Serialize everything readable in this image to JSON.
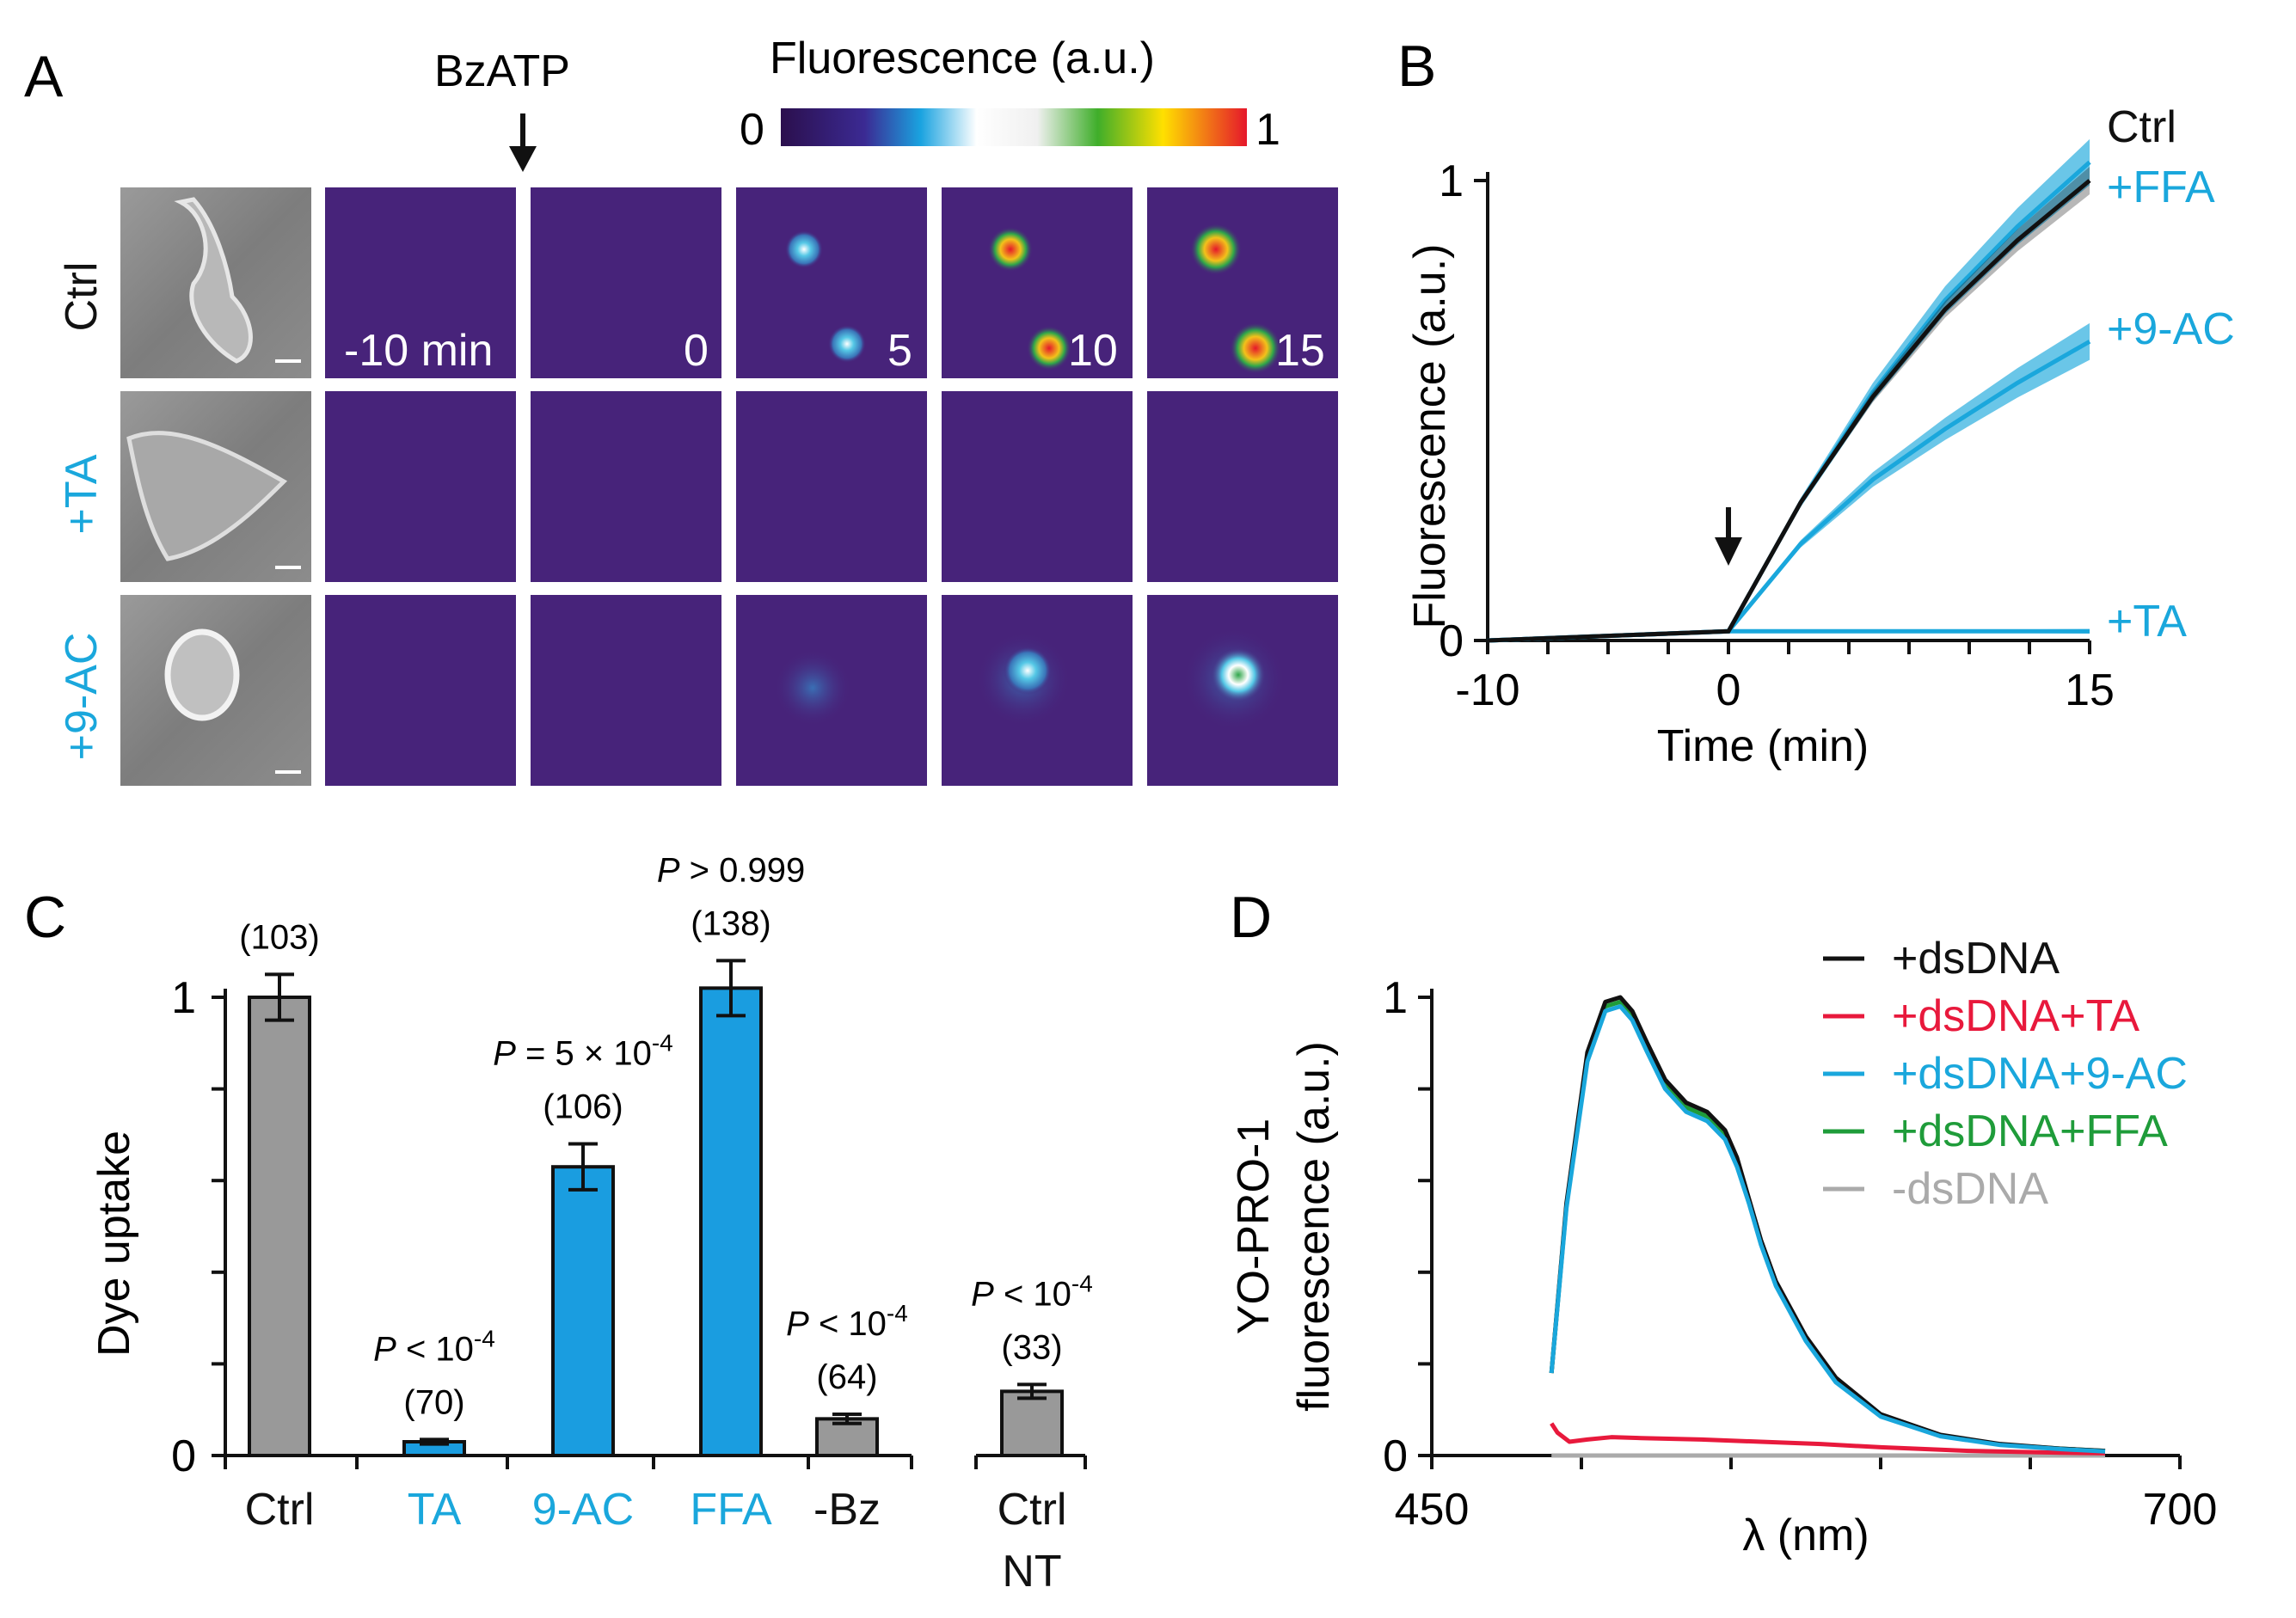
{
  "colors": {
    "black": "#111111",
    "cyan": "#1aa7dc",
    "cyan_bar": "#1a9de0",
    "gray_bar": "#999999",
    "red": "#e8193c",
    "green": "#1f9c3a",
    "lightgray": "#aaaaaa",
    "purple_bg": "#47237a"
  },
  "panelA": {
    "label": "A",
    "stimulus": "BzATP",
    "colorbar_title": "Fluorescence (a.u.)",
    "colorbar_min": "0",
    "colorbar_max": "1",
    "rows": [
      "Ctrl",
      "+TA",
      "+9-AC"
    ],
    "row_colors": [
      "black",
      "cyan",
      "cyan"
    ],
    "time_labels": [
      "-10 min",
      "0",
      "5",
      "10",
      "15"
    ]
  },
  "chart_data": [
    {
      "panel": "B",
      "type": "line",
      "xlabel": "Time (min)",
      "ylabel": "Fluorescence (a.u.)",
      "xlim": [
        -10,
        15
      ],
      "ylim": [
        0,
        1.05
      ],
      "xticks": [
        "-10",
        "0",
        "15"
      ],
      "yticks": [
        "0",
        "1"
      ],
      "stimulus_time": 0,
      "series": [
        {
          "name": "Ctrl",
          "color": "black",
          "x": [
            -10,
            0,
            3,
            6,
            9,
            12,
            15
          ],
          "y": [
            0.0,
            0.02,
            0.3,
            0.53,
            0.72,
            0.87,
            1.0
          ],
          "sem": 0.03
        },
        {
          "name": "+FFA",
          "color": "cyan",
          "x": [
            -10,
            0,
            3,
            6,
            9,
            12,
            15
          ],
          "y": [
            0.0,
            0.02,
            0.3,
            0.54,
            0.74,
            0.9,
            1.04
          ],
          "sem": 0.05
        },
        {
          "name": "+9-AC",
          "color": "cyan",
          "x": [
            -10,
            0,
            3,
            6,
            9,
            12,
            15
          ],
          "y": [
            0.0,
            0.02,
            0.21,
            0.35,
            0.46,
            0.56,
            0.65
          ],
          "sem": 0.04
        },
        {
          "name": "+TA",
          "color": "cyan",
          "x": [
            -10,
            0,
            15
          ],
          "y": [
            0.0,
            0.02,
            0.02
          ],
          "sem": 0.005
        }
      ]
    },
    {
      "panel": "C",
      "type": "bar",
      "ylabel": "Dye uptake",
      "ylim": [
        0,
        1.15
      ],
      "yticks": [
        "0",
        "1"
      ],
      "categories": [
        "Ctrl",
        "TA",
        "9-AC",
        "FFA",
        "-Bz",
        "Ctrl NT"
      ],
      "category_lines": [
        [
          "Ctrl"
        ],
        [
          "TA"
        ],
        [
          "9-AC"
        ],
        [
          "FFA"
        ],
        [
          "-Bz"
        ],
        [
          "Ctrl",
          "NT"
        ]
      ],
      "category_colors": [
        "black",
        "cyan",
        "cyan",
        "cyan",
        "black",
        "black"
      ],
      "bar_colors": [
        "gray",
        "cyan",
        "cyan",
        "cyan",
        "gray",
        "gray"
      ],
      "values": [
        1.0,
        0.03,
        0.63,
        1.02,
        0.08,
        0.14
      ],
      "errors": [
        0.05,
        0.005,
        0.05,
        0.06,
        0.01,
        0.015
      ],
      "n": [
        "(103)",
        "(70)",
        "(106)",
        "(138)",
        "(64)",
        "(33)"
      ],
      "pvalues": [
        {
          "p": "",
          "op": "",
          "val": "",
          "sup": ""
        },
        {
          "p": "P",
          "op": " < ",
          "val": "10",
          "sup": "-4"
        },
        {
          "p": "P",
          "op": " = ",
          "val": "5 × 10",
          "sup": "-4"
        },
        {
          "p": "P",
          "op": " > ",
          "val": "0.999",
          "sup": ""
        },
        {
          "p": "P",
          "op": " < ",
          "val": "10",
          "sup": "-4"
        },
        {
          "p": "P",
          "op": " < ",
          "val": "10",
          "sup": "-4"
        }
      ]
    },
    {
      "panel": "D",
      "type": "line",
      "xlabel": "λ (nm)",
      "ylabel_lines": [
        "YO-PRO-1",
        "fluorescence (a.u.)"
      ],
      "xlim": [
        450,
        700
      ],
      "ylim": [
        0,
        1.0
      ],
      "xticks": [
        "450",
        "700"
      ],
      "yticks": [
        "0",
        "1"
      ],
      "series": [
        {
          "name": "+dsDNA",
          "color": "black",
          "x": [
            490,
            495,
            502,
            508,
            513,
            517,
            522,
            528,
            535,
            542,
            548,
            552,
            556,
            560,
            565,
            575,
            585,
            600,
            620,
            640,
            660,
            675
          ],
          "y": [
            0.18,
            0.55,
            0.88,
            0.99,
            1.0,
            0.97,
            0.9,
            0.82,
            0.77,
            0.75,
            0.71,
            0.65,
            0.56,
            0.47,
            0.38,
            0.26,
            0.17,
            0.09,
            0.045,
            0.025,
            0.015,
            0.01
          ]
        },
        {
          "name": "+dsDNA+TA",
          "color": "red",
          "x": [
            490,
            492,
            496,
            502,
            510,
            520,
            540,
            560,
            580,
            600,
            630,
            660,
            675
          ],
          "y": [
            0.07,
            0.05,
            0.03,
            0.035,
            0.04,
            0.038,
            0.035,
            0.03,
            0.025,
            0.018,
            0.01,
            0.006,
            0.005
          ]
        },
        {
          "name": "+dsDNA+9-AC",
          "color": "cyan",
          "x": [
            490,
            495,
            502,
            508,
            513,
            517,
            522,
            528,
            535,
            542,
            548,
            552,
            556,
            560,
            565,
            575,
            585,
            600,
            620,
            640,
            660,
            675
          ],
          "y": [
            0.18,
            0.54,
            0.86,
            0.97,
            0.98,
            0.95,
            0.88,
            0.8,
            0.75,
            0.73,
            0.69,
            0.63,
            0.55,
            0.46,
            0.37,
            0.25,
            0.16,
            0.085,
            0.042,
            0.023,
            0.014,
            0.009
          ]
        },
        {
          "name": "+dsDNA+FFA",
          "color": "green",
          "x": [
            490,
            495,
            502,
            508,
            513,
            517,
            522,
            528,
            535,
            542,
            548,
            552,
            556,
            560,
            565,
            575,
            585,
            600,
            620,
            640,
            660,
            675
          ],
          "y": [
            0.18,
            0.545,
            0.87,
            0.98,
            0.99,
            0.96,
            0.89,
            0.81,
            0.76,
            0.74,
            0.7,
            0.64,
            0.555,
            0.465,
            0.375,
            0.255,
            0.165,
            0.088,
            0.044,
            0.024,
            0.015,
            0.01
          ]
        },
        {
          "name": "-dsDNA",
          "color": "lightgray",
          "x": [
            490,
            675
          ],
          "y": [
            0.0,
            0.0
          ]
        }
      ]
    }
  ],
  "panel_labels": [
    "A",
    "B",
    "C",
    "D"
  ]
}
